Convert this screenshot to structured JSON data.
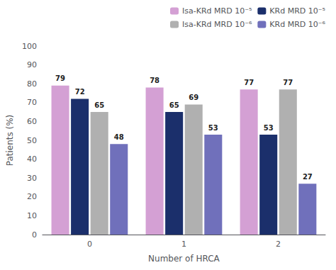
{
  "chart_data": {
    "type": "bar",
    "categories": [
      "0",
      "1",
      "2"
    ],
    "series": [
      {
        "name": "Isa-KRd MRD 10⁻⁵",
        "color": "#d4a0d4",
        "values": [
          79,
          78,
          77
        ]
      },
      {
        "name": "KRd MRD 10⁻⁵",
        "color": "#1b2f6b",
        "values": [
          72,
          65,
          53
        ]
      },
      {
        "name": "Isa-KRd MRD 10⁻⁶",
        "color": "#b0b0b0",
        "values": [
          65,
          69,
          77
        ]
      },
      {
        "name": "KRd MRD 10⁻⁶",
        "color": "#7070bb",
        "values": [
          48,
          53,
          27
        ]
      }
    ],
    "xlabel": "Number of HRCA",
    "ylabel": "Patients (%)",
    "ylim": [
      0,
      100
    ],
    "yticks": [
      0,
      10,
      20,
      30,
      40,
      50,
      60,
      70,
      80,
      90,
      100
    ],
    "grid": false,
    "legend": "upper right",
    "data_labels": true
  }
}
